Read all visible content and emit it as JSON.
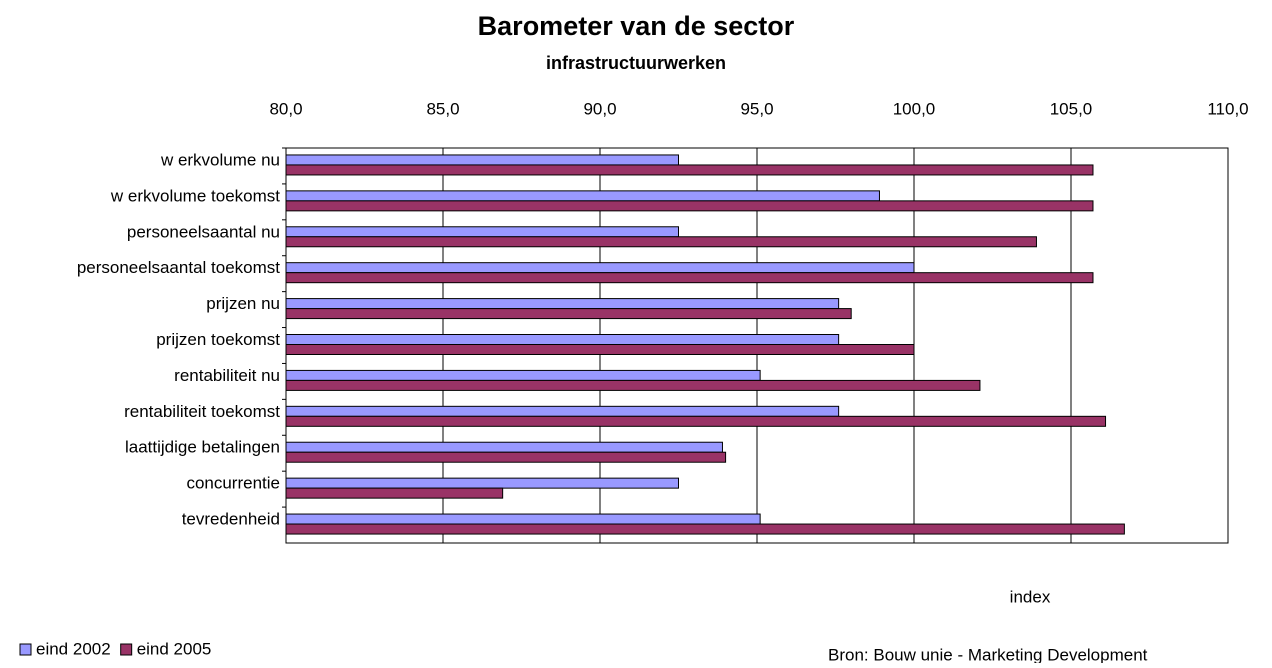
{
  "chart_data": {
    "type": "bar",
    "orientation": "horizontal",
    "title": "Barometer van de sector",
    "subtitle": "infrastructuurwerken",
    "x_label": "index",
    "source": "Bron: Bouw unie - Marketing Development",
    "categories": [
      "w erkvolume nu",
      "w erkvolume toekomst",
      "personeelsaantal nu",
      "personeelsaantal toekomst",
      "prijzen nu",
      "prijzen toekomst",
      "rentabiliteit nu",
      "rentabiliteit toekomst",
      "laattijdige betalingen",
      "concurrentie",
      "tevredenheid"
    ],
    "series": [
      {
        "name": "eind 2002",
        "color": "#9999ff",
        "values": [
          92.5,
          98.9,
          92.5,
          100.0,
          97.6,
          97.6,
          95.1,
          97.6,
          93.9,
          92.5,
          95.1
        ]
      },
      {
        "name": "eind 2005",
        "color": "#993366",
        "values": [
          105.7,
          105.7,
          103.9,
          105.7,
          98.0,
          100.0,
          102.1,
          106.1,
          94.0,
          86.9,
          106.7
        ]
      }
    ],
    "xlim": [
      80,
      110
    ],
    "xticks": [
      {
        "value": 80,
        "label": "80,0"
      },
      {
        "value": 85,
        "label": "85,0"
      },
      {
        "value": 90,
        "label": "90,0"
      },
      {
        "value": 95,
        "label": "95,0"
      },
      {
        "value": 100,
        "label": "100,0"
      },
      {
        "value": 105,
        "label": "105,0"
      },
      {
        "value": 110,
        "label": "110,0"
      }
    ],
    "grid": true,
    "legend": "bottom-left"
  }
}
